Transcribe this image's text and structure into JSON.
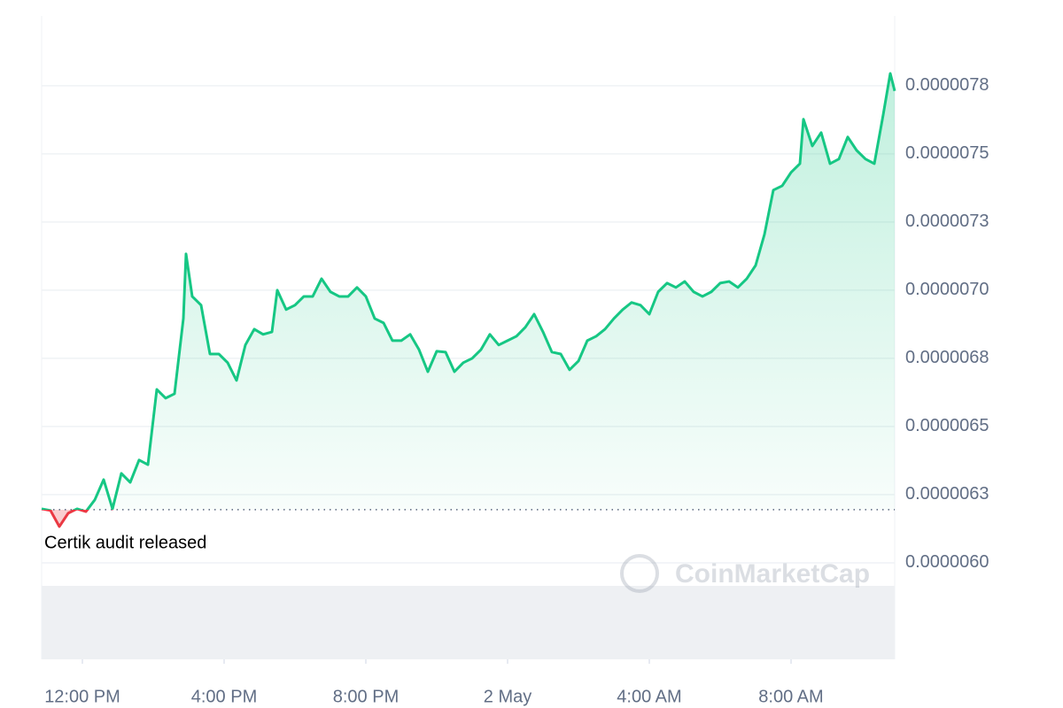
{
  "chart_data": {
    "type": "line",
    "annotation": "Certik audit released",
    "baseline": 6.195e-06,
    "watermark": "CoinMarketCap",
    "up_color": "#16c784",
    "down_color": "#ea3943",
    "grid": true,
    "xlim": [
      10.85,
      34.925
    ],
    "xticks": [
      {
        "value": 12,
        "label": "12:00 PM"
      },
      {
        "value": 16,
        "label": "4:00 PM"
      },
      {
        "value": 20,
        "label": "8:00 PM"
      },
      {
        "value": 24,
        "label": "2 May"
      },
      {
        "value": 28,
        "label": "4:00 AM"
      },
      {
        "value": 32,
        "label": "8:00 AM"
      }
    ],
    "ylim": [
      5.646e-06,
      8.006e-06
    ],
    "yticks": [
      {
        "value": 6e-06,
        "label": "0.0000060"
      },
      {
        "value": 6.25e-06,
        "label": "0.0000063"
      },
      {
        "value": 6.5e-06,
        "label": "0.0000065"
      },
      {
        "value": 6.75e-06,
        "label": "0.0000068"
      },
      {
        "value": 7e-06,
        "label": "0.0000070"
      },
      {
        "value": 7.25e-06,
        "label": "0.0000073"
      },
      {
        "value": 7.5e-06,
        "label": "0.0000075"
      },
      {
        "value": 7.75e-06,
        "label": "0.0000078"
      }
    ],
    "x": [
      10.85,
      11.1,
      11.35,
      11.6,
      11.85,
      12.1,
      12.35,
      12.6,
      12.85,
      13.1,
      13.35,
      13.6,
      13.85,
      14.1,
      14.35,
      14.6,
      14.85,
      14.925,
      15.1,
      15.35,
      15.6,
      15.85,
      16.1,
      16.35,
      16.6,
      16.85,
      17.1,
      17.35,
      17.5,
      17.75,
      18.0,
      18.25,
      18.5,
      18.75,
      19.0,
      19.25,
      19.5,
      19.75,
      20.0,
      20.25,
      20.5,
      20.75,
      21.0,
      21.25,
      21.5,
      21.75,
      22.0,
      22.25,
      22.5,
      22.75,
      23.0,
      23.25,
      23.5,
      23.75,
      24.0,
      24.25,
      24.5,
      24.75,
      25.0,
      25.25,
      25.5,
      25.75,
      26.0,
      26.25,
      26.5,
      26.75,
      27.0,
      27.25,
      27.5,
      27.75,
      28.0,
      28.25,
      28.5,
      28.75,
      29.0,
      29.25,
      29.5,
      29.75,
      30.0,
      30.25,
      30.5,
      30.75,
      31.0,
      31.25,
      31.5,
      31.75,
      32.0,
      32.25,
      32.35,
      32.6,
      32.85,
      33.1,
      33.35,
      33.6,
      33.85,
      34.1,
      34.35,
      34.6,
      34.8,
      34.925
    ],
    "values": [
      6.198e-06,
      6.192e-06,
      6.133e-06,
      6.182e-06,
      6.198e-06,
      6.188e-06,
      6.231e-06,
      6.305e-06,
      6.198e-06,
      6.328e-06,
      6.295e-06,
      6.377e-06,
      6.36e-06,
      6.636e-06,
      6.604e-06,
      6.62e-06,
      6.896e-06,
      7.133e-06,
      6.977e-06,
      6.945e-06,
      6.766e-06,
      6.766e-06,
      6.734e-06,
      6.669e-06,
      6.799e-06,
      6.857e-06,
      6.838e-06,
      6.847e-06,
      7e-06,
      6.929e-06,
      6.945e-06,
      6.977e-06,
      6.977e-06,
      7.042e-06,
      6.994e-06,
      6.977e-06,
      6.977e-06,
      7.01e-06,
      6.977e-06,
      6.896e-06,
      6.88e-06,
      6.815e-06,
      6.815e-06,
      6.838e-06,
      6.782e-06,
      6.701e-06,
      6.776e-06,
      6.773e-06,
      6.701e-06,
      6.734e-06,
      6.75e-06,
      6.782e-06,
      6.838e-06,
      6.799e-06,
      6.815e-06,
      6.831e-06,
      6.864e-06,
      6.912e-06,
      6.847e-06,
      6.773e-06,
      6.766e-06,
      6.708e-06,
      6.74e-06,
      6.815e-06,
      6.831e-06,
      6.857e-06,
      6.896e-06,
      6.929e-06,
      6.955e-06,
      6.945e-06,
      6.912e-06,
      6.994e-06,
      7.026e-06,
      7.01e-06,
      7.032e-06,
      6.994e-06,
      6.977e-06,
      6.994e-06,
      7.026e-06,
      7.032e-06,
      7.01e-06,
      7.042e-06,
      7.091e-06,
      7.205e-06,
      7.367e-06,
      7.383e-06,
      7.432e-06,
      7.464e-06,
      7.627e-06,
      7.529e-06,
      7.578e-06,
      7.464e-06,
      7.481e-06,
      7.562e-06,
      7.513e-06,
      7.481e-06,
      7.464e-06,
      7.643e-06,
      7.795e-06,
      7.731e-06
    ]
  }
}
